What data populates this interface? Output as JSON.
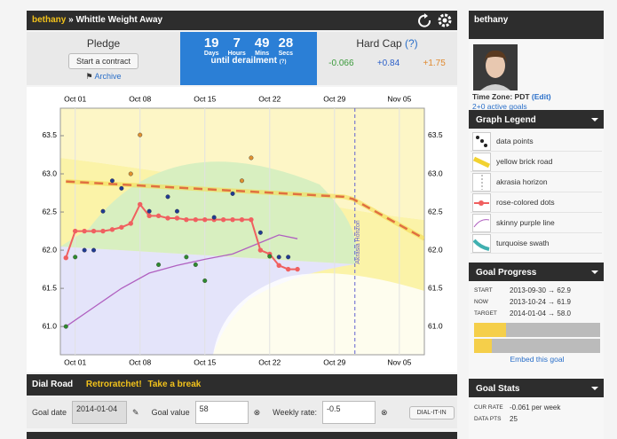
{
  "header": {
    "user": "bethany",
    "separator": "»",
    "goal": "Whittle Weight Away"
  },
  "pledge": {
    "title": "Pledge",
    "button": "Start a contract",
    "archive": "Archive"
  },
  "countdown": {
    "units": [
      {
        "value": "19",
        "label": "Days"
      },
      {
        "value": "7",
        "label": "Hours"
      },
      {
        "value": "49",
        "label": "Mins"
      },
      {
        "value": "28",
        "label": "Secs"
      }
    ],
    "caption": "until derailment",
    "help": "(?)"
  },
  "hard_cap": {
    "title": "Hard Cap",
    "help": "(?)",
    "values": [
      "-0.066",
      "+0.84",
      "+1.75"
    ]
  },
  "chart_data": {
    "type": "line",
    "xlim": [
      -0.6,
      38.7
    ],
    "ylim": [
      60.63,
      63.86
    ],
    "xticks": [
      {
        "value": 1,
        "label": "Oct 01"
      },
      {
        "value": 8,
        "label": "Oct 08"
      },
      {
        "value": 15,
        "label": "Oct 15"
      },
      {
        "value": 22,
        "label": "Oct 22"
      },
      {
        "value": 29,
        "label": "Oct 29"
      },
      {
        "value": 36,
        "label": "Nov 05"
      }
    ],
    "yticks": [
      {
        "value": 61,
        "label": "61.0"
      },
      {
        "value": 61.5,
        "label": "61.5"
      },
      {
        "value": 62,
        "label": "62.0"
      },
      {
        "value": 62.5,
        "label": "62.5"
      },
      {
        "value": 63,
        "label": "63.0"
      },
      {
        "value": 63.5,
        "label": "63.5"
      }
    ],
    "grid": true,
    "annotation": {
      "text": "Akrasia Horizon",
      "x": 31.2,
      "color": "#6060d0"
    },
    "series": [
      {
        "style": "dashed",
        "color": "#e07040",
        "x": [
          0,
          30,
          31,
          38.7
        ],
        "values": [
          62.9,
          62.7,
          62.67,
          62.15
        ]
      },
      {
        "style": "line",
        "color": "#b060c0",
        "x": [
          0,
          3,
          6,
          9,
          12,
          15,
          18,
          21,
          23,
          25
        ],
        "values": [
          61.0,
          61.25,
          61.5,
          61.7,
          61.8,
          61.88,
          61.95,
          62.1,
          62.2,
          62.15
        ]
      },
      {
        "style": "line-dots",
        "color": "#f06060",
        "x": [
          0,
          1,
          2,
          3,
          4,
          5,
          6,
          7,
          8,
          9,
          10,
          11,
          12,
          13,
          14,
          15,
          16,
          17,
          18,
          19,
          20,
          21,
          22,
          23,
          24,
          25
        ],
        "values": [
          61.9,
          62.25,
          62.25,
          62.25,
          62.25,
          62.27,
          62.3,
          62.35,
          62.6,
          62.45,
          62.45,
          62.42,
          62.42,
          62.4,
          62.4,
          62.4,
          62.4,
          62.4,
          62.4,
          62.4,
          62.4,
          62.0,
          61.95,
          61.8,
          61.75,
          61.75
        ]
      },
      {
        "style": "points",
        "color": "#2e8b2e",
        "x": [
          0,
          1,
          10,
          13,
          14,
          15,
          22
        ],
        "values": [
          61.0,
          61.91,
          61.81,
          61.91,
          61.81,
          61.6,
          61.92
        ]
      },
      {
        "style": "points",
        "color": "#1f3a93",
        "x": [
          2,
          3,
          4,
          5,
          6,
          9,
          11,
          12,
          16,
          18,
          21,
          23,
          24
        ],
        "values": [
          62.0,
          62.0,
          62.51,
          62.91,
          62.81,
          62.51,
          62.7,
          62.51,
          62.43,
          62.74,
          62.23,
          61.91,
          61.91
        ]
      },
      {
        "style": "points",
        "color": "#e09030",
        "x": [
          7,
          8,
          19,
          20
        ],
        "values": [
          63.0,
          63.51,
          62.91,
          63.21
        ]
      }
    ]
  },
  "dial": {
    "title": "Dial Road",
    "links": [
      "Retroratchet!",
      "Take a break"
    ],
    "fields": [
      {
        "label": "Goal date",
        "value": "2014-01-04"
      },
      {
        "label": "Goal value",
        "value": "58"
      },
      {
        "label": "Weekly rate:",
        "value": "-0.5"
      }
    ],
    "button": "DIAL-IT-IN"
  },
  "sidebar": {
    "user": "bethany",
    "timezone": "Time Zone: PDT",
    "edit": "(Edit)",
    "active_goals": "2+0 active goals",
    "legend": {
      "title": "Graph Legend",
      "items": [
        "data points",
        "yellow brick road",
        "akrasia horizon",
        "rose-colored dots",
        "skinny purple line",
        "turquoise swath"
      ]
    },
    "progress": {
      "title": "Goal Progress",
      "rows": [
        {
          "label": "START",
          "value": "2013-09-30 → 62.9"
        },
        {
          "label": "NOW",
          "value": "2013-10-24 → 61.9"
        },
        {
          "label": "TARGET",
          "value": "2014-01-04 → 58.0"
        }
      ],
      "embed": "Embed this goal"
    },
    "stats": {
      "title": "Goal Stats",
      "rows": [
        {
          "label": "CUR RATE",
          "value": "-0.061 per week"
        },
        {
          "label": "DATA PTS",
          "value": "25"
        }
      ]
    }
  }
}
